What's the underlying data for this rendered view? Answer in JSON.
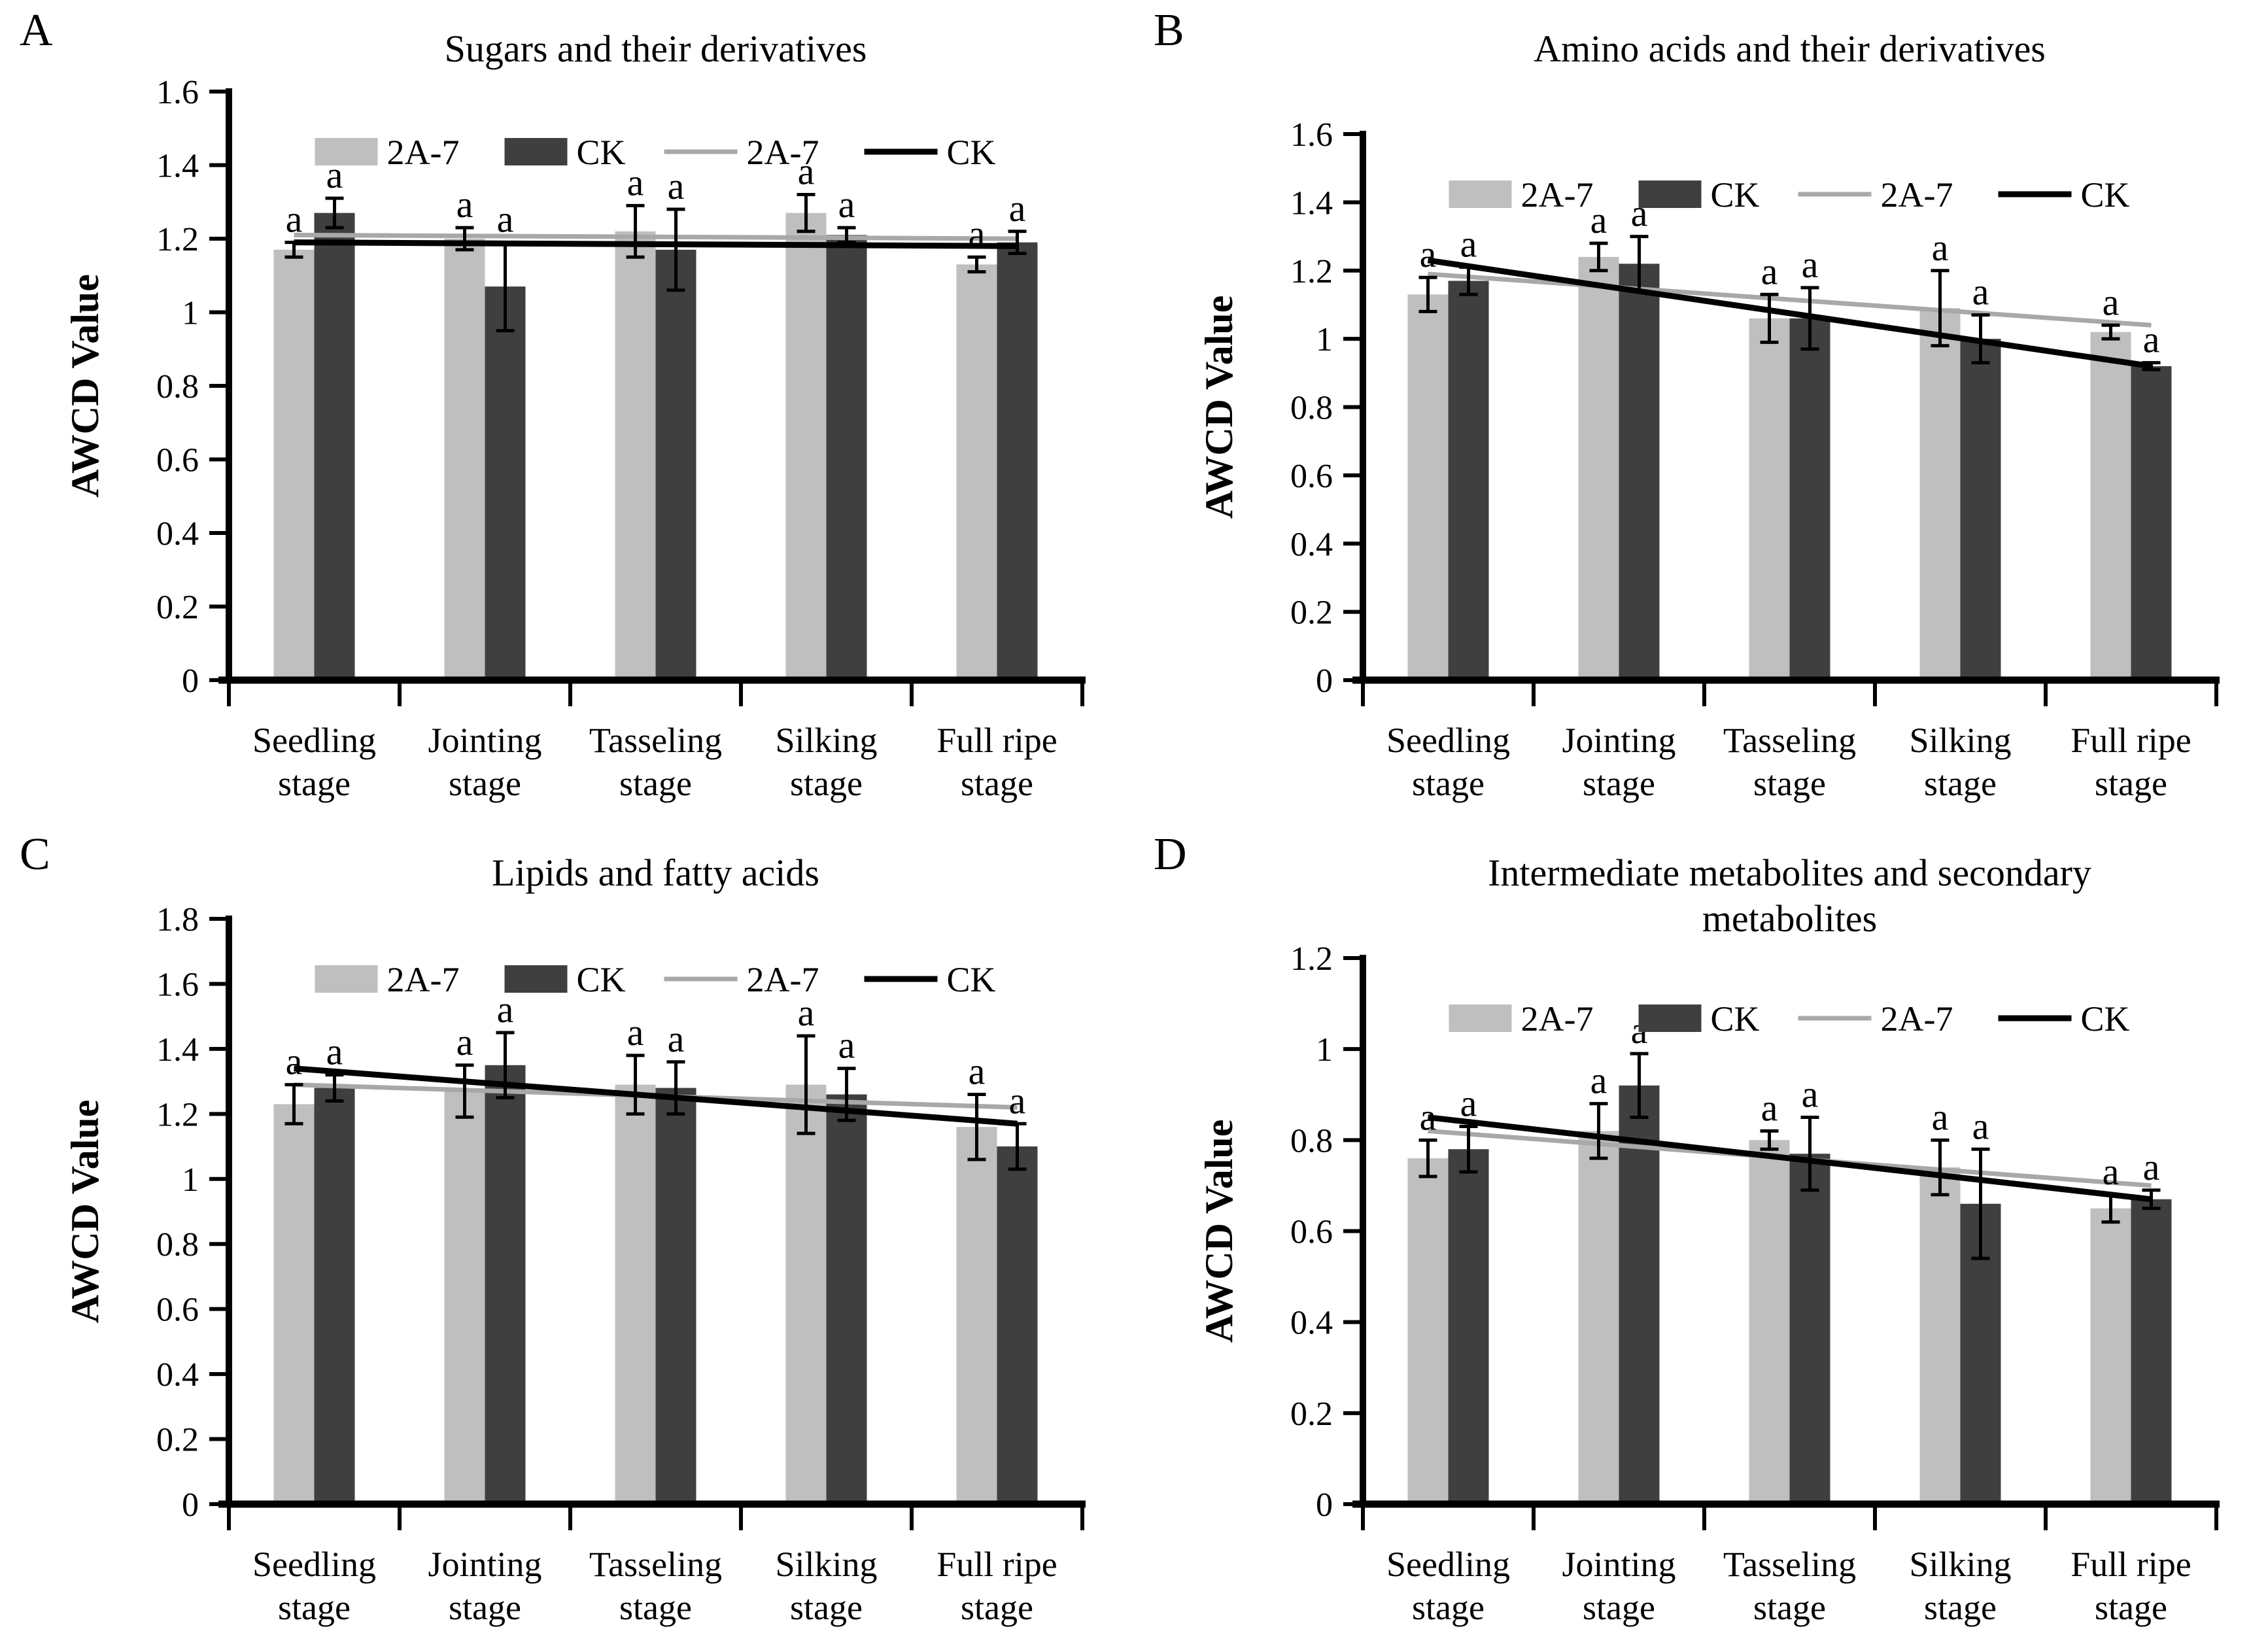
{
  "figure": {
    "ylabel": "AWCD Value",
    "significance_label": "a",
    "colors": {
      "bar_2a7": "#bfbfbf",
      "bar_ck": "#3f3f3f",
      "trend_2a7": "#a8a8a8",
      "trend_ck": "#000000",
      "axis": "#000000",
      "text": "#000000",
      "background": "#ffffff"
    },
    "legend": [
      {
        "marker": "rect",
        "color": "#bfbfbf",
        "label": "2A-7"
      },
      {
        "marker": "rect",
        "color": "#3f3f3f",
        "label": "CK"
      },
      {
        "marker": "line",
        "color": "#a8a8a8",
        "label": "2A-7"
      },
      {
        "marker": "line",
        "color": "#000000",
        "label": "CK"
      }
    ]
  },
  "chart_data": [
    {
      "panel": "A",
      "type": "bar",
      "title": "Sugars and their derivatives",
      "ylabel": "AWCD Value",
      "ylim": [
        0,
        1.6
      ],
      "ytick_labels": [
        "0",
        "0.2",
        "0.4",
        "0.6",
        "0.8",
        "1",
        "1.2",
        "1.4",
        "1.6"
      ],
      "categories": [
        "Seedling stage",
        "Jointing stage",
        "Tasseling stage",
        "Silking stage",
        "Full ripe stage"
      ],
      "series": [
        {
          "name": "2A-7",
          "color": "#bfbfbf",
          "values": [
            1.17,
            1.2,
            1.22,
            1.27,
            1.13
          ],
          "errors": [
            0.02,
            0.03,
            0.07,
            0.05,
            0.02
          ],
          "sig": [
            "a",
            "a",
            "a",
            "a",
            "a"
          ]
        },
        {
          "name": "CK",
          "color": "#3f3f3f",
          "values": [
            1.27,
            1.07,
            1.17,
            1.21,
            1.19
          ],
          "errors": [
            0.04,
            0.12,
            0.11,
            0.02,
            0.03
          ],
          "sig": [
            "a",
            "a",
            "a",
            "a",
            "a"
          ]
        }
      ],
      "trend": [
        {
          "name": "2A-7",
          "color": "#a8a8a8",
          "start": 1.21,
          "end": 1.2
        },
        {
          "name": "CK",
          "color": "#000000",
          "start": 1.19,
          "end": 1.18
        }
      ]
    },
    {
      "panel": "B",
      "type": "bar",
      "title": "Amino acids and their derivatives",
      "ylabel": "AWCD Value",
      "ylim": [
        0,
        1.6
      ],
      "ytick_labels": [
        "0",
        "0.2",
        "0.4",
        "0.6",
        "0.8",
        "1",
        "1.2",
        "1.4",
        "1.6"
      ],
      "categories": [
        "Seedling stage",
        "Jointing stage",
        "Tasseling stage",
        "Silking stage",
        "Full ripe stage"
      ],
      "series": [
        {
          "name": "2A-7",
          "color": "#bfbfbf",
          "values": [
            1.13,
            1.24,
            1.06,
            1.09,
            1.02
          ],
          "errors": [
            0.05,
            0.04,
            0.07,
            0.11,
            0.02
          ],
          "sig": [
            "a",
            "a",
            "a",
            "a",
            "a"
          ]
        },
        {
          "name": "CK",
          "color": "#3f3f3f",
          "values": [
            1.17,
            1.22,
            1.06,
            1.0,
            0.92
          ],
          "errors": [
            0.04,
            0.08,
            0.09,
            0.07,
            0.01
          ],
          "sig": [
            "a",
            "a",
            "a",
            "a",
            "a"
          ]
        }
      ],
      "trend": [
        {
          "name": "2A-7",
          "color": "#a8a8a8",
          "start": 1.19,
          "end": 1.04
        },
        {
          "name": "CK",
          "color": "#000000",
          "start": 1.23,
          "end": 0.92
        }
      ]
    },
    {
      "panel": "C",
      "type": "bar",
      "title": "Lipids and fatty acids",
      "ylabel": "AWCD Value",
      "ylim": [
        0,
        1.8
      ],
      "ytick_labels": [
        "0",
        "0.2",
        "0.4",
        "0.6",
        "0.8",
        "1",
        "1.2",
        "1.4",
        "1.6",
        "1.8"
      ],
      "categories": [
        "Seedling stage",
        "Jointing stage",
        "Tasseling stage",
        "Silking stage",
        "Full ripe stage"
      ],
      "series": [
        {
          "name": "2A-7",
          "color": "#bfbfbf",
          "values": [
            1.23,
            1.27,
            1.29,
            1.29,
            1.16
          ],
          "errors": [
            0.06,
            0.08,
            0.09,
            0.15,
            0.1
          ],
          "sig": [
            "a",
            "a",
            "a",
            "a",
            "a"
          ]
        },
        {
          "name": "CK",
          "color": "#3f3f3f",
          "values": [
            1.28,
            1.35,
            1.28,
            1.26,
            1.1
          ],
          "errors": [
            0.04,
            0.1,
            0.08,
            0.08,
            0.07
          ],
          "sig": [
            "a",
            "a",
            "a",
            "a",
            "a"
          ]
        }
      ],
      "trend": [
        {
          "name": "2A-7",
          "color": "#a8a8a8",
          "start": 1.29,
          "end": 1.22
        },
        {
          "name": "CK",
          "color": "#000000",
          "start": 1.34,
          "end": 1.17
        }
      ]
    },
    {
      "panel": "D",
      "type": "bar",
      "title": "Intermediate metabolites and secondary\nmetabolites",
      "ylabel": "AWCD Value",
      "ylim": [
        0,
        1.2
      ],
      "ytick_labels": [
        "0",
        "0.2",
        "0.4",
        "0.6",
        "0.8",
        "1",
        "1.2"
      ],
      "categories": [
        "Seedling stage",
        "Jointing stage",
        "Tasseling stage",
        "Silking stage",
        "Full ripe stage"
      ],
      "series": [
        {
          "name": "2A-7",
          "color": "#bfbfbf",
          "values": [
            0.76,
            0.82,
            0.8,
            0.74,
            0.65
          ],
          "errors": [
            0.04,
            0.06,
            0.02,
            0.06,
            0.03
          ],
          "sig": [
            "a",
            "a",
            "a",
            "a",
            "a"
          ]
        },
        {
          "name": "CK",
          "color": "#3f3f3f",
          "values": [
            0.78,
            0.92,
            0.77,
            0.66,
            0.67
          ],
          "errors": [
            0.05,
            0.07,
            0.08,
            0.12,
            0.02
          ],
          "sig": [
            "a",
            "a",
            "a",
            "a",
            "a"
          ]
        }
      ],
      "trend": [
        {
          "name": "2A-7",
          "color": "#a8a8a8",
          "start": 0.82,
          "end": 0.7
        },
        {
          "name": "CK",
          "color": "#000000",
          "start": 0.85,
          "end": 0.67
        }
      ]
    }
  ]
}
